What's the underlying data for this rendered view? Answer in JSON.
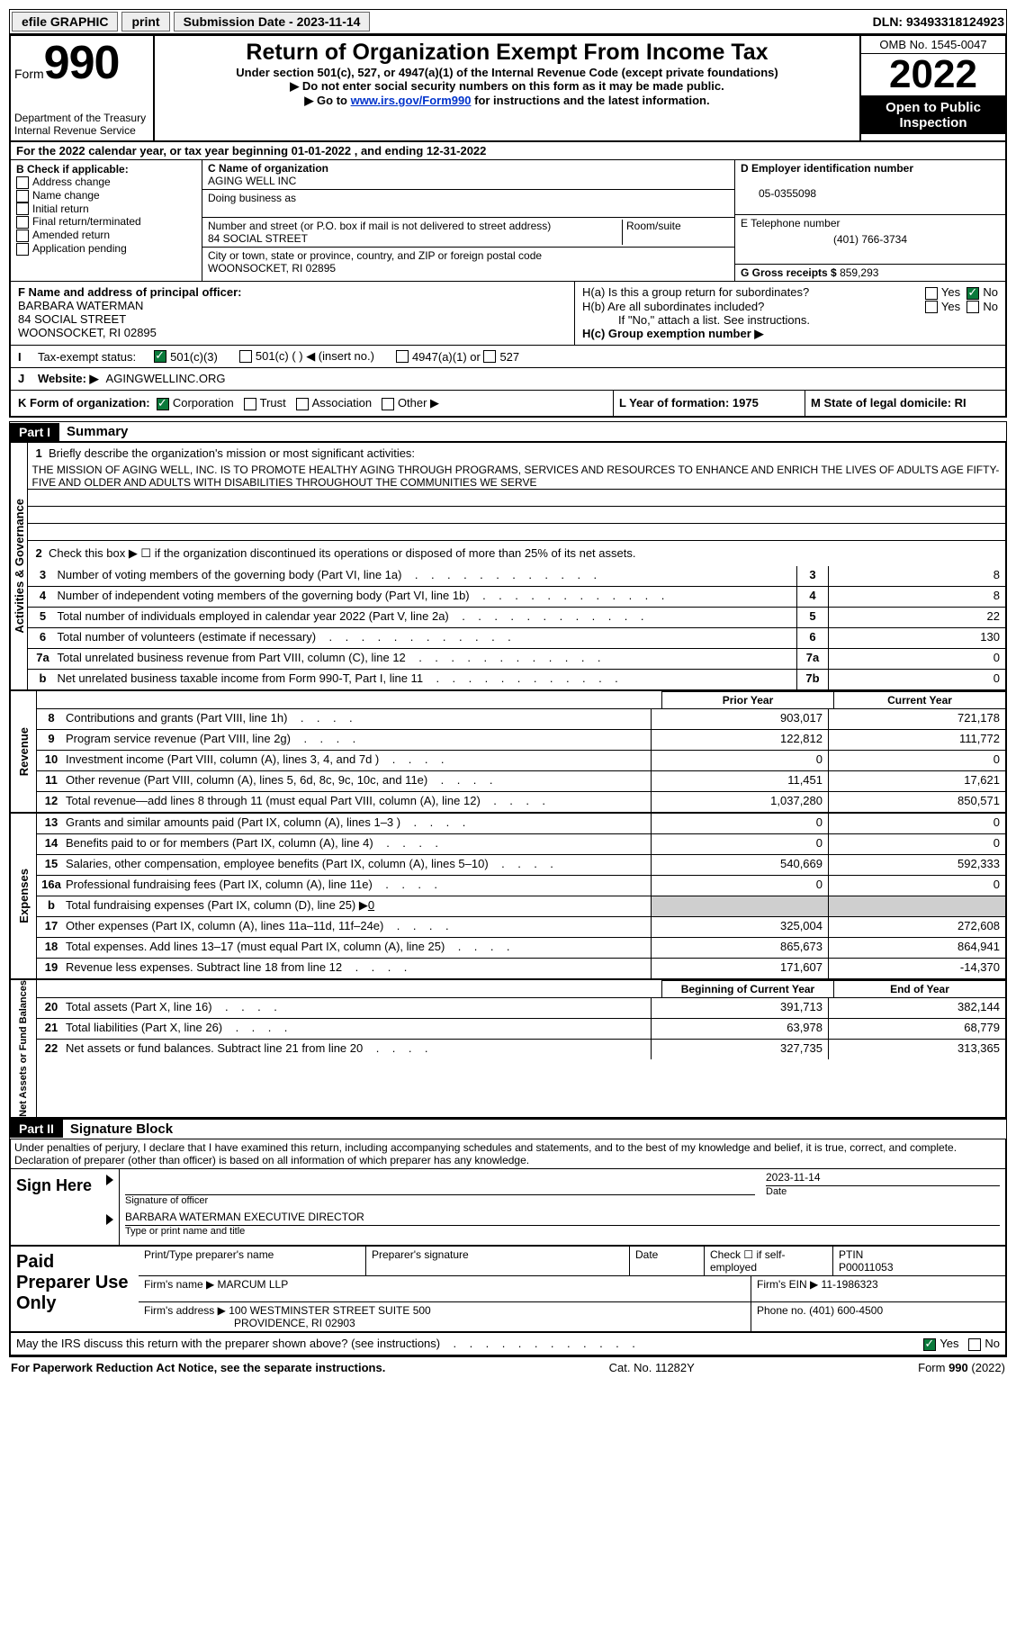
{
  "topbar": {
    "efile_label": "efile GRAPHIC",
    "print_label": "print",
    "submission_label": "Submission Date - 2023-11-14",
    "dln_label": "DLN: 93493318124923"
  },
  "header": {
    "form_word": "Form",
    "form_number": "990",
    "dept_line1": "Department of the Treasury",
    "dept_line2": "Internal Revenue Service",
    "main_title": "Return of Organization Exempt From Income Tax",
    "sub_title": "Under section 501(c), 527, or 4947(a)(1) of the Internal Revenue Code (except private foundations)",
    "note1": "Do not enter social security numbers on this form as it may be made public.",
    "note2_prefix": "Go to ",
    "note2_link": "www.irs.gov/Form990",
    "note2_suffix": " for instructions and the latest information.",
    "omb": "OMB No. 1545-0047",
    "tax_year": "2022",
    "inspect": "Open to Public Inspection"
  },
  "sectionA": {
    "cal_year": "For the 2022 calendar year, or tax year beginning 01-01-2022    , and ending 12-31-2022",
    "b_label": "B Check if applicable:",
    "checks": {
      "address_change": "Address change",
      "name_change": "Name change",
      "initial_return": "Initial return",
      "final_return": "Final return/terminated",
      "amended_return": "Amended return",
      "application_pending": "Application pending"
    },
    "c_label": "C Name of organization",
    "org_name": "AGING WELL INC",
    "dba_label": "Doing business as",
    "addr_label": "Number and street (or P.O. box if mail is not delivered to street address)",
    "room_label": "Room/suite",
    "street": "84 SOCIAL STREET",
    "city_label": "City or town, state or province, country, and ZIP or foreign postal code",
    "city": "WOONSOCKET, RI  02895",
    "d_label": "D Employer identification number",
    "ein": "05-0355098",
    "e_label": "E Telephone number",
    "phone": "(401) 766-3734",
    "g_label": "G Gross receipts $",
    "gross": "859,293"
  },
  "fh": {
    "f_label": "F Name and address of principal officer:",
    "officer_name": "BARBARA WATERMAN",
    "officer_addr1": "84 SOCIAL STREET",
    "officer_addr2": "WOONSOCKET, RI  02895",
    "ha_label": "H(a)  Is this a group return for subordinates?",
    "hb_label": "H(b)  Are all subordinates included?",
    "hb_note": "If \"No,\" attach a list. See instructions.",
    "hc_label": "H(c)  Group exemption number ▶",
    "yes": "Yes",
    "no": "No"
  },
  "i": {
    "label": "Tax-exempt status:",
    "opt1": "501(c)(3)",
    "opt2": "501(c) (   ) ◀ (insert no.)",
    "opt3": "4947(a)(1) or",
    "opt4": "527"
  },
  "j": {
    "label": "Website: ▶",
    "value": "AGINGWELLINC.ORG"
  },
  "k": {
    "label": "K Form of organization:",
    "opts": [
      "Corporation",
      "Trust",
      "Association",
      "Other ▶"
    ],
    "l_label": "L Year of formation: 1975",
    "m_label": "M State of legal domicile: RI"
  },
  "part1": {
    "hdr": "Part I",
    "title": "Summary",
    "line1_label": "Briefly describe the organization's mission or most significant activities:",
    "mission": "THE MISSION OF AGING WELL, INC. IS TO PROMOTE HEALTHY AGING THROUGH PROGRAMS, SERVICES AND RESOURCES TO ENHANCE AND ENRICH THE LIVES OF ADULTS AGE FIFTY-FIVE AND OLDER AND ADULTS WITH DISABILITIES THROUGHOUT THE COMMUNITIES WE SERVE",
    "line2": "Check this box ▶ ☐  if the organization discontinued its operations or disposed of more than 25% of its net assets.",
    "rows_gov": [
      {
        "n": "3",
        "t": "Number of voting members of the governing body (Part VI, line 1a)",
        "box": "3",
        "v": "8"
      },
      {
        "n": "4",
        "t": "Number of independent voting members of the governing body (Part VI, line 1b)",
        "box": "4",
        "v": "8"
      },
      {
        "n": "5",
        "t": "Total number of individuals employed in calendar year 2022 (Part V, line 2a)",
        "box": "5",
        "v": "22"
      },
      {
        "n": "6",
        "t": "Total number of volunteers (estimate if necessary)",
        "box": "6",
        "v": "130"
      },
      {
        "n": "7a",
        "t": "Total unrelated business revenue from Part VIII, column (C), line 12",
        "box": "7a",
        "v": "0"
      },
      {
        "n": "b",
        "t": "Net unrelated business taxable income from Form 990-T, Part I, line 11",
        "box": "7b",
        "v": "0"
      }
    ],
    "col_prior": "Prior Year",
    "col_curr": "Current Year",
    "rows_rev": [
      {
        "n": "8",
        "t": "Contributions and grants (Part VIII, line 1h)",
        "p": "903,017",
        "c": "721,178"
      },
      {
        "n": "9",
        "t": "Program service revenue (Part VIII, line 2g)",
        "p": "122,812",
        "c": "111,772"
      },
      {
        "n": "10",
        "t": "Investment income (Part VIII, column (A), lines 3, 4, and 7d )",
        "p": "0",
        "c": "0"
      },
      {
        "n": "11",
        "t": "Other revenue (Part VIII, column (A), lines 5, 6d, 8c, 9c, 10c, and 11e)",
        "p": "11,451",
        "c": "17,621"
      },
      {
        "n": "12",
        "t": "Total revenue—add lines 8 through 11 (must equal Part VIII, column (A), line 12)",
        "p": "1,037,280",
        "c": "850,571"
      }
    ],
    "rows_exp": [
      {
        "n": "13",
        "t": "Grants and similar amounts paid (Part IX, column (A), lines 1–3 )",
        "p": "0",
        "c": "0"
      },
      {
        "n": "14",
        "t": "Benefits paid to or for members (Part IX, column (A), line 4)",
        "p": "0",
        "c": "0"
      },
      {
        "n": "15",
        "t": "Salaries, other compensation, employee benefits (Part IX, column (A), lines 5–10)",
        "p": "540,669",
        "c": "592,333"
      },
      {
        "n": "16a",
        "t": "Professional fundraising fees (Part IX, column (A), line 11e)",
        "p": "0",
        "c": "0"
      },
      {
        "n": "b",
        "t": "Total fundraising expenses (Part IX, column (D), line 25) ▶0",
        "p": "",
        "c": "",
        "gray": true
      },
      {
        "n": "17",
        "t": "Other expenses (Part IX, column (A), lines 11a–11d, 11f–24e)",
        "p": "325,004",
        "c": "272,608"
      },
      {
        "n": "18",
        "t": "Total expenses. Add lines 13–17 (must equal Part IX, column (A), line 25)",
        "p": "865,673",
        "c": "864,941"
      },
      {
        "n": "19",
        "t": "Revenue less expenses. Subtract line 18 from line 12",
        "p": "171,607",
        "c": "-14,370"
      }
    ],
    "col_beg": "Beginning of Current Year",
    "col_end": "End of Year",
    "rows_net": [
      {
        "n": "20",
        "t": "Total assets (Part X, line 16)",
        "p": "391,713",
        "c": "382,144"
      },
      {
        "n": "21",
        "t": "Total liabilities (Part X, line 26)",
        "p": "63,978",
        "c": "68,779"
      },
      {
        "n": "22",
        "t": "Net assets or fund balances. Subtract line 21 from line 20",
        "p": "327,735",
        "c": "313,365"
      }
    ],
    "vtab_gov": "Activities & Governance",
    "vtab_rev": "Revenue",
    "vtab_exp": "Expenses",
    "vtab_net": "Net Assets or Fund Balances"
  },
  "part2": {
    "hdr": "Part II",
    "title": "Signature Block",
    "decl": "Under penalties of perjury, I declare that I have examined this return, including accompanying schedules and statements, and to the best of my knowledge and belief, it is true, correct, and complete. Declaration of preparer (other than officer) is based on all information of which preparer has any knowledge.",
    "sign_here": "Sign Here",
    "sig_officer_label": "Signature of officer",
    "sig_date_label": "Date",
    "sig_date": "2023-11-14",
    "officer_printed": "BARBARA WATERMAN  EXECUTIVE DIRECTOR",
    "officer_printed_label": "Type or print name and title",
    "paid_prep": "Paid Preparer Use Only",
    "prep_name_label": "Print/Type preparer's name",
    "prep_sig_label": "Preparer's signature",
    "date_label": "Date",
    "check_if": "Check ☐ if self-employed",
    "ptin_label": "PTIN",
    "ptin": "P00011053",
    "firm_name_label": "Firm's name   ▶",
    "firm_name": "MARCUM LLP",
    "firm_ein_label": "Firm's EIN ▶",
    "firm_ein": "11-1986323",
    "firm_addr_label": "Firm's address ▶",
    "firm_addr1": "100 WESTMINSTER STREET SUITE 500",
    "firm_addr2": "PROVIDENCE, RI  02903",
    "firm_phone_label": "Phone no.",
    "firm_phone": "(401) 600-4500",
    "discuss": "May the IRS discuss this return with the preparer shown above? (see instructions)"
  },
  "footer": {
    "left": "For Paperwork Reduction Act Notice, see the separate instructions.",
    "mid": "Cat. No. 11282Y",
    "right": "Form 990 (2022)"
  },
  "colors": {
    "link": "#0033cc",
    "check_green": "#0a7a3b",
    "gray_fill": "#cfcfcf"
  }
}
